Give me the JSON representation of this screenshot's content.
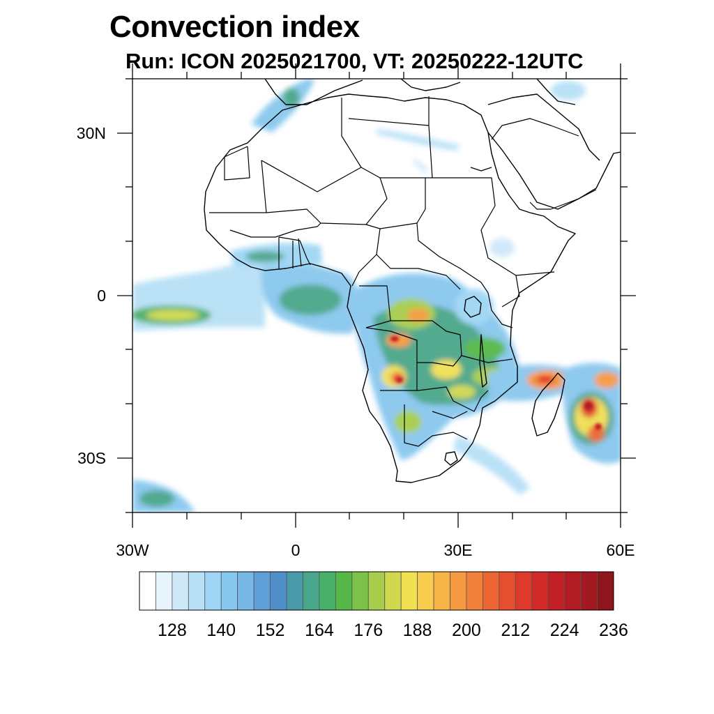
{
  "title": "Convection index",
  "subtitle": "Run: ICON 2025021700,  VT: 20250222-12UTC",
  "axes": {
    "lon_ticks": [
      "30W",
      "0",
      "30E",
      "60E"
    ],
    "lat_ticks": [
      "30N",
      "0",
      "30S"
    ]
  },
  "colorbar": {
    "labels": [
      "128",
      "140",
      "152",
      "164",
      "176",
      "188",
      "200",
      "212",
      "224",
      "236"
    ],
    "colors": [
      "#ffffff",
      "#e8f4fc",
      "#cfe8f8",
      "#b8e0f7",
      "#9fd6f5",
      "#88c7ee",
      "#78b8e6",
      "#5f9fd8",
      "#4f8ec9",
      "#4a99a8",
      "#48a68a",
      "#48b06a",
      "#55b848",
      "#7cc24a",
      "#a6cd4c",
      "#cfd84f",
      "#f0e052",
      "#f8cc4e",
      "#f7b447",
      "#f59a40",
      "#f1803a",
      "#ec6633",
      "#e54e2e",
      "#dd3a2b",
      "#d22a28",
      "#c31f26",
      "#b11b24",
      "#a21921",
      "#8e151c"
    ]
  }
}
